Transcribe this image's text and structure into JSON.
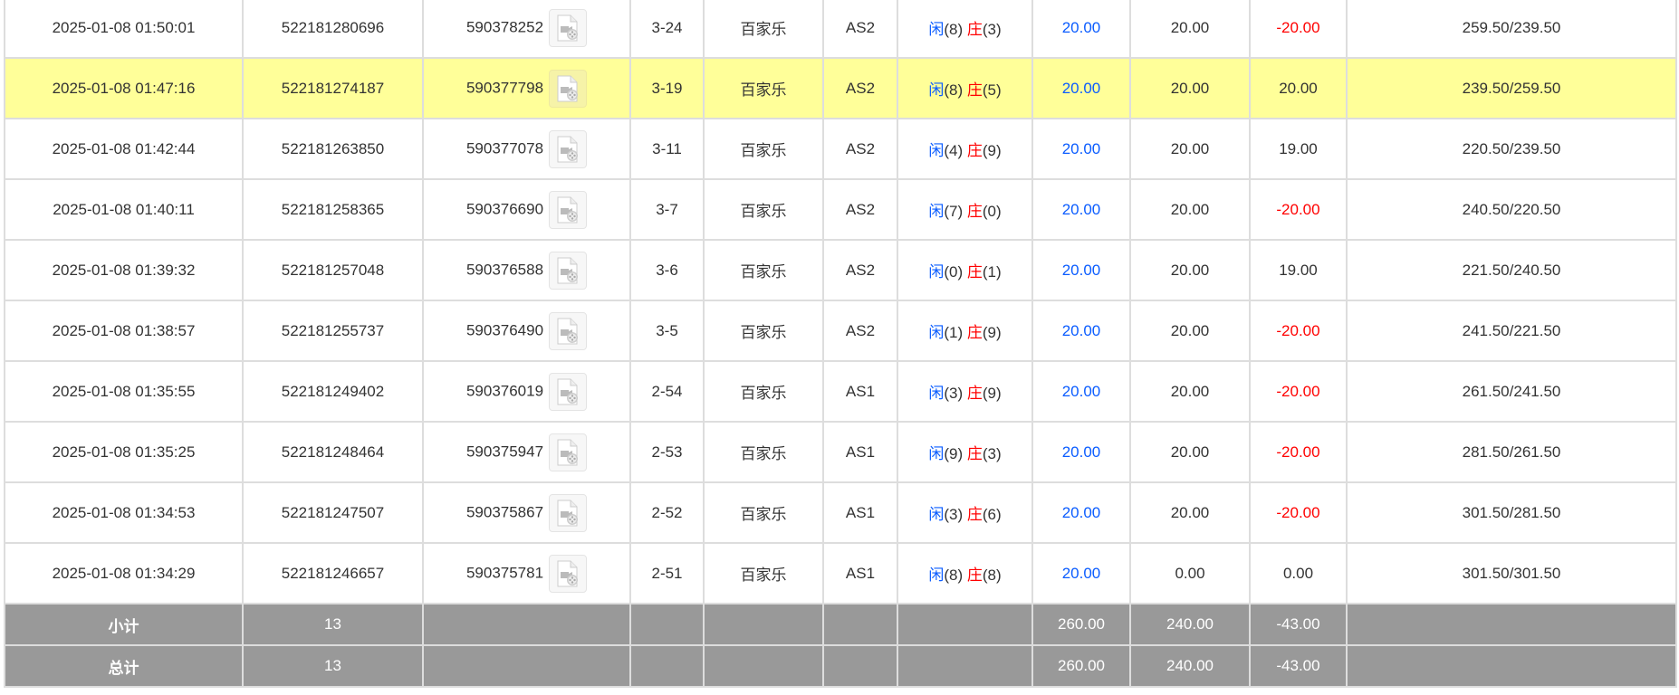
{
  "colors": {
    "player": "#0a5cff",
    "banker": "#ff0000",
    "highlight": "#ffff99",
    "summary_bg": "#999999"
  },
  "labels": {
    "player": "闲",
    "banker": "庄"
  },
  "rows": [
    {
      "time": "2025-01-08 01:50:01",
      "bet_id": "522181280696",
      "round_id": "590378252",
      "shoe": "3-24",
      "game": "百家乐",
      "table": "AS2",
      "player": "8",
      "banker": "3",
      "bet": "20.00",
      "valid": "20.00",
      "winloss": "-20.00",
      "balance": "259.50/239.50",
      "highlight": false
    },
    {
      "time": "2025-01-08 01:47:16",
      "bet_id": "522181274187",
      "round_id": "590377798",
      "shoe": "3-19",
      "game": "百家乐",
      "table": "AS2",
      "player": "8",
      "banker": "5",
      "bet": "20.00",
      "valid": "20.00",
      "winloss": "20.00",
      "balance": "239.50/259.50",
      "highlight": true
    },
    {
      "time": "2025-01-08 01:42:44",
      "bet_id": "522181263850",
      "round_id": "590377078",
      "shoe": "3-11",
      "game": "百家乐",
      "table": "AS2",
      "player": "4",
      "banker": "9",
      "bet": "20.00",
      "valid": "20.00",
      "winloss": "19.00",
      "balance": "220.50/239.50",
      "highlight": false
    },
    {
      "time": "2025-01-08 01:40:11",
      "bet_id": "522181258365",
      "round_id": "590376690",
      "shoe": "3-7",
      "game": "百家乐",
      "table": "AS2",
      "player": "7",
      "banker": "0",
      "bet": "20.00",
      "valid": "20.00",
      "winloss": "-20.00",
      "balance": "240.50/220.50",
      "highlight": false
    },
    {
      "time": "2025-01-08 01:39:32",
      "bet_id": "522181257048",
      "round_id": "590376588",
      "shoe": "3-6",
      "game": "百家乐",
      "table": "AS2",
      "player": "0",
      "banker": "1",
      "bet": "20.00",
      "valid": "20.00",
      "winloss": "19.00",
      "balance": "221.50/240.50",
      "highlight": false
    },
    {
      "time": "2025-01-08 01:38:57",
      "bet_id": "522181255737",
      "round_id": "590376490",
      "shoe": "3-5",
      "game": "百家乐",
      "table": "AS2",
      "player": "1",
      "banker": "9",
      "bet": "20.00",
      "valid": "20.00",
      "winloss": "-20.00",
      "balance": "241.50/221.50",
      "highlight": false
    },
    {
      "time": "2025-01-08 01:35:55",
      "bet_id": "522181249402",
      "round_id": "590376019",
      "shoe": "2-54",
      "game": "百家乐",
      "table": "AS1",
      "player": "3",
      "banker": "9",
      "bet": "20.00",
      "valid": "20.00",
      "winloss": "-20.00",
      "balance": "261.50/241.50",
      "highlight": false
    },
    {
      "time": "2025-01-08 01:35:25",
      "bet_id": "522181248464",
      "round_id": "590375947",
      "shoe": "2-53",
      "game": "百家乐",
      "table": "AS1",
      "player": "9",
      "banker": "3",
      "bet": "20.00",
      "valid": "20.00",
      "winloss": "-20.00",
      "balance": "281.50/261.50",
      "highlight": false
    },
    {
      "time": "2025-01-08 01:34:53",
      "bet_id": "522181247507",
      "round_id": "590375867",
      "shoe": "2-52",
      "game": "百家乐",
      "table": "AS1",
      "player": "3",
      "banker": "6",
      "bet": "20.00",
      "valid": "20.00",
      "winloss": "-20.00",
      "balance": "301.50/281.50",
      "highlight": false
    },
    {
      "time": "2025-01-08 01:34:29",
      "bet_id": "522181246657",
      "round_id": "590375781",
      "shoe": "2-51",
      "game": "百家乐",
      "table": "AS1",
      "player": "8",
      "banker": "8",
      "bet": "20.00",
      "valid": "0.00",
      "winloss": "0.00",
      "balance": "301.50/301.50",
      "highlight": false
    }
  ],
  "subtotal": {
    "label": "小计",
    "count": "13",
    "bet": "260.00",
    "valid": "240.00",
    "winloss": "-43.00"
  },
  "total": {
    "label": "总计",
    "count": "13",
    "bet": "260.00",
    "valid": "240.00",
    "winloss": "-43.00"
  }
}
